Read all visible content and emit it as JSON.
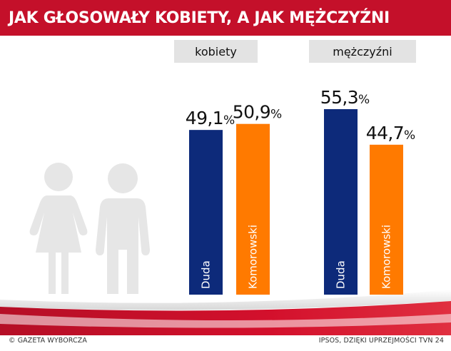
{
  "header": {
    "title": "JAK GŁOSOWAŁY KOBIETY, A JAK MĘŻCZYŹNI"
  },
  "colors": {
    "header_red": "#c4102a",
    "duda": "#0d2a7a",
    "komorowski": "#ff7a00",
    "label_bg": "#e3e3e3"
  },
  "chart_data": {
    "type": "bar",
    "categories": [
      "kobiety",
      "mężczyźni"
    ],
    "series": [
      {
        "name": "Duda",
        "values": [
          49.1,
          55.3
        ],
        "labels": [
          "49,1",
          "55,3"
        ],
        "color": "#0d2a7a"
      },
      {
        "name": "Komorowski",
        "values": [
          50.9,
          44.7
        ],
        "labels": [
          "50,9",
          "44,7"
        ],
        "color": "#ff7a00"
      }
    ],
    "unit": "%",
    "title": "JAK GŁOSOWAŁY KOBIETY, A JAK MĘŻCZYŹNI",
    "ylim": [
      0,
      60
    ],
    "grid": false,
    "legend": "none"
  },
  "silhouettes": {
    "icon": "woman-and-man-icon"
  },
  "footer": {
    "left": "© GAZETA WYBORCZA",
    "right": "IPSOS, DZIĘKI UPRZEJMOŚCI TVN 24"
  }
}
